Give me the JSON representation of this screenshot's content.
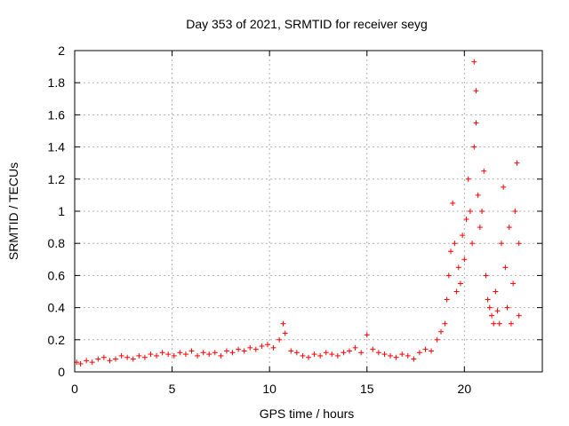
{
  "chart_data": {
    "type": "scatter",
    "title": "Day 353 of 2021, SRMTID for receiver seyg",
    "xlabel": "GPS time / hours",
    "ylabel": "SRMTID / TECUs",
    "xlim": [
      0,
      24
    ],
    "ylim": [
      0,
      2
    ],
    "xticks": [
      0,
      5,
      10,
      15,
      20
    ],
    "xtick_labels": [
      "0",
      "5",
      "10",
      "15",
      "20"
    ],
    "yticks": [
      0,
      0.2,
      0.4,
      0.6,
      0.8,
      1,
      1.2,
      1.4,
      1.6,
      1.8,
      2
    ],
    "ytick_labels": [
      "0",
      "0.2",
      "0.4",
      "0.6",
      "0.8",
      "1",
      "1.2",
      "1.4",
      "1.6",
      "1.8",
      "2"
    ],
    "grid": true,
    "marker": "plus",
    "marker_color": "#ff0000",
    "series": [
      {
        "name": "SRMTID",
        "x": [
          0.1,
          0.3,
          0.6,
          0.9,
          1.2,
          1.5,
          1.8,
          2.1,
          2.4,
          2.7,
          3.0,
          3.3,
          3.6,
          3.9,
          4.2,
          4.5,
          4.8,
          5.1,
          5.4,
          5.7,
          6.0,
          6.3,
          6.6,
          6.9,
          7.2,
          7.5,
          7.8,
          8.1,
          8.4,
          8.7,
          9.0,
          9.3,
          9.6,
          9.9,
          10.2,
          10.5,
          10.7,
          10.8,
          11.1,
          11.4,
          11.7,
          12.0,
          12.3,
          12.6,
          12.9,
          13.2,
          13.5,
          13.8,
          14.1,
          14.4,
          14.7,
          15.0,
          15.3,
          15.6,
          15.9,
          16.2,
          16.5,
          16.8,
          17.1,
          17.4,
          17.7,
          18.0,
          18.3,
          18.6,
          18.8,
          19.0,
          19.1,
          19.2,
          19.3,
          19.4,
          19.5,
          19.6,
          19.7,
          19.8,
          19.9,
          20.0,
          20.1,
          20.2,
          20.3,
          20.4,
          20.5,
          20.5,
          20.6,
          20.6,
          20.7,
          20.8,
          20.9,
          21.0,
          21.1,
          21.2,
          21.3,
          21.4,
          21.5,
          21.6,
          21.7,
          21.8,
          21.9,
          22.0,
          22.1,
          22.2,
          22.3,
          22.4,
          22.5,
          22.6,
          22.7,
          22.8,
          22.8
        ],
        "y": [
          0.06,
          0.05,
          0.07,
          0.06,
          0.08,
          0.09,
          0.07,
          0.08,
          0.1,
          0.09,
          0.08,
          0.1,
          0.09,
          0.11,
          0.1,
          0.12,
          0.11,
          0.1,
          0.12,
          0.11,
          0.13,
          0.1,
          0.12,
          0.11,
          0.12,
          0.1,
          0.13,
          0.12,
          0.14,
          0.13,
          0.15,
          0.14,
          0.16,
          0.17,
          0.15,
          0.2,
          0.3,
          0.24,
          0.13,
          0.12,
          0.1,
          0.09,
          0.11,
          0.1,
          0.12,
          0.11,
          0.1,
          0.12,
          0.13,
          0.15,
          0.12,
          0.23,
          0.14,
          0.12,
          0.11,
          0.1,
          0.09,
          0.11,
          0.1,
          0.08,
          0.12,
          0.14,
          0.13,
          0.2,
          0.25,
          0.3,
          0.45,
          0.6,
          0.75,
          1.05,
          0.8,
          0.5,
          0.65,
          0.55,
          0.85,
          0.7,
          0.95,
          1.2,
          1.0,
          0.8,
          1.4,
          1.93,
          1.75,
          1.55,
          1.1,
          0.9,
          1.0,
          1.25,
          0.6,
          0.45,
          0.4,
          0.35,
          0.3,
          0.5,
          0.38,
          0.3,
          0.8,
          1.15,
          0.65,
          0.4,
          0.9,
          0.3,
          0.55,
          1.0,
          1.3,
          0.8,
          0.35
        ]
      }
    ]
  }
}
